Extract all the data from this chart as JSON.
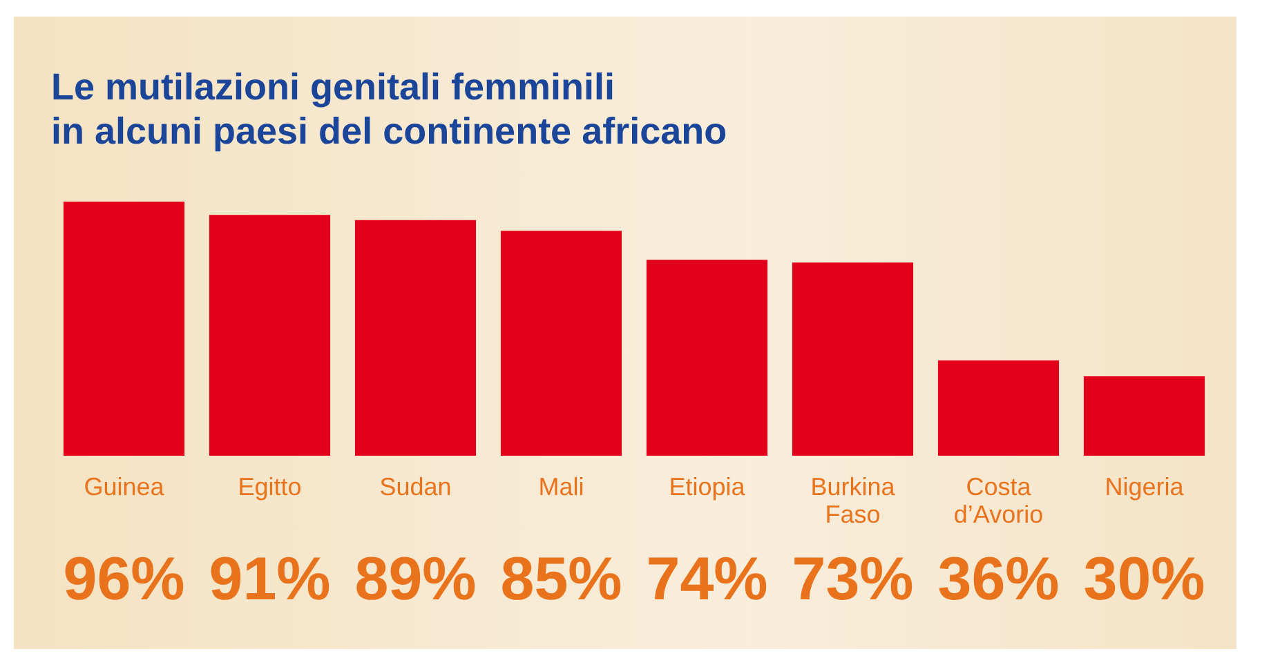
{
  "chart_data": {
    "type": "bar",
    "title": "Le mutilazioni genitali femminili\nin alcuni paesi del continente africano",
    "categories": [
      "Guinea",
      "Egitto",
      "Sudan",
      "Mali",
      "Etiopia",
      "Burkina Faso",
      "Costa d’Avorio",
      "Nigeria"
    ],
    "values": [
      96,
      91,
      89,
      85,
      74,
      73,
      36,
      30
    ],
    "value_labels": [
      "96%",
      "91%",
      "89%",
      "85%",
      "74%",
      "73%",
      "36%",
      "30%"
    ],
    "color": "#e2001a",
    "tick_labels": "x"
  }
}
